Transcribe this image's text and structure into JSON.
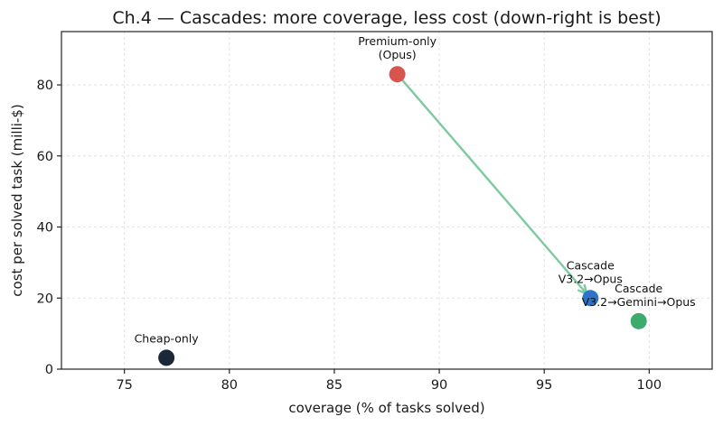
{
  "chart_data": {
    "type": "scatter",
    "title": "Ch.4 — Cascades: more coverage, less cost (down-right is best)",
    "xlabel": "coverage  (% of tasks solved)",
    "ylabel": "cost per solved task  (milli-$)",
    "xlim": [
      72,
      103
    ],
    "ylim": [
      0,
      95
    ],
    "xticks": [
      75,
      80,
      85,
      90,
      95,
      100
    ],
    "yticks": [
      0,
      20,
      40,
      60,
      80
    ],
    "grid": true,
    "points": [
      {
        "label_lines": [
          "Cheap-only"
        ],
        "x": 77.0,
        "y": 3.2,
        "color": "#1b2838"
      },
      {
        "label_lines": [
          "Premium-only",
          "(Opus)"
        ],
        "x": 88.0,
        "y": 83.0,
        "color": "#d9534f"
      },
      {
        "label_lines": [
          "Cascade",
          "V3.2→Opus"
        ],
        "x": 97.2,
        "y": 20.0,
        "color": "#2f73c9"
      },
      {
        "label_lines": [
          "Cascade",
          "V3.2→Gemini→Opus"
        ],
        "x": 99.5,
        "y": 13.5,
        "color": "#3daa6e"
      }
    ],
    "arrow": {
      "from": [
        88.0,
        83.0
      ],
      "to": [
        97.2,
        20.0
      ],
      "color": "#7dc9a0"
    }
  }
}
